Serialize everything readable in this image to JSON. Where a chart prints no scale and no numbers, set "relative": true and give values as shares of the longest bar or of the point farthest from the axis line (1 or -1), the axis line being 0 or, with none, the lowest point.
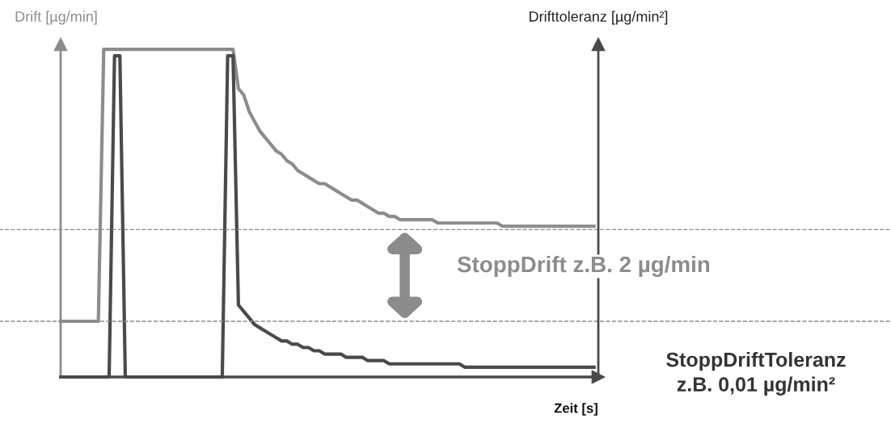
{
  "chart_data": {
    "type": "line",
    "relative": true,
    "xlabel": "Zeit [s]",
    "ylabel": "Drift [µg/min]",
    "y2label": "Drifttoleranz [µg/min²]",
    "annotations": [
      "StoppDrift z.B. 2 µg/min",
      "StoppDriftToleranz\nz.B. 0,01 µg/min²"
    ],
    "categories": [
      null,
      null,
      null,
      null,
      null,
      null,
      null,
      null,
      null,
      null,
      null,
      null,
      null,
      null,
      null,
      null,
      null,
      null,
      null,
      null,
      null,
      null,
      null,
      null,
      null,
      null,
      null,
      null,
      null,
      null,
      null,
      null,
      null,
      null,
      null,
      null,
      null,
      null,
      null,
      null,
      null,
      null,
      null,
      null,
      null,
      null,
      null,
      null,
      null,
      null,
      null,
      null,
      null,
      null,
      null,
      null,
      null,
      null,
      null,
      null,
      null,
      null,
      null,
      null,
      null,
      null,
      null,
      null,
      null,
      null,
      null,
      null,
      null,
      null,
      null,
      null,
      null,
      null,
      null,
      null,
      null,
      null,
      null,
      null,
      null,
      null,
      null,
      null,
      null,
      null,
      null,
      null,
      null,
      null,
      null,
      null,
      null,
      null,
      null,
      null
    ],
    "series": [
      {
        "color": "#8c8c8c",
        "values": [
          0.17,
          0.17,
          0.17,
          0.17,
          0.17,
          0.17,
          0.17,
          0.17,
          1.0,
          1.0,
          1.0,
          1.0,
          1.0,
          1.0,
          1.0,
          1.0,
          1.0,
          1.0,
          1.0,
          1.0,
          1.0,
          1.0,
          1.0,
          1.0,
          1.0,
          1.0,
          1.0,
          1.0,
          1.0,
          1.0,
          1.0,
          1.0,
          1.0,
          0.88,
          0.86,
          0.81,
          0.78,
          0.75,
          0.73,
          0.71,
          0.69,
          0.68,
          0.66,
          0.65,
          0.63,
          0.62,
          0.61,
          0.6,
          0.59,
          0.59,
          0.58,
          0.57,
          0.56,
          0.55,
          0.54,
          0.54,
          0.53,
          0.52,
          0.51,
          0.5,
          0.5,
          0.49,
          0.49,
          0.48,
          0.48,
          0.48,
          0.48,
          0.48,
          0.48,
          0.48,
          0.47,
          0.47,
          0.47,
          0.47,
          0.47,
          0.47,
          0.47,
          0.47,
          0.47,
          0.47,
          0.47,
          0.47,
          0.46,
          0.46,
          0.46,
          0.46,
          0.46,
          0.46,
          0.46,
          0.46,
          0.46,
          0.46,
          0.46,
          0.46,
          0.46,
          0.46,
          0.46,
          0.46,
          0.46,
          0.46
        ]
      },
      {
        "color": "#4a4a4a",
        "values": [
          0,
          0,
          0,
          0,
          0,
          0,
          0,
          0,
          0,
          0,
          0.98,
          0.98,
          0,
          0,
          0,
          0,
          0,
          0,
          0,
          0,
          0,
          0,
          0,
          0,
          0,
          0,
          0,
          0,
          0,
          0,
          0,
          0.98,
          0.98,
          0.22,
          0.2,
          0.18,
          0.16,
          0.15,
          0.14,
          0.13,
          0.12,
          0.11,
          0.11,
          0.1,
          0.1,
          0.09,
          0.09,
          0.08,
          0.08,
          0.07,
          0.07,
          0.07,
          0.07,
          0.06,
          0.06,
          0.06,
          0.06,
          0.05,
          0.05,
          0.05,
          0.05,
          0.04,
          0.04,
          0.04,
          0.04,
          0.04,
          0.04,
          0.04,
          0.04,
          0.04,
          0.04,
          0.04,
          0.04,
          0.04,
          0.04,
          0.03,
          0.03,
          0.03,
          0.03,
          0.03,
          0.03,
          0.03,
          0.03,
          0.03,
          0.03,
          0.03,
          0.03,
          0.03,
          0.03,
          0.03,
          0.03,
          0.03,
          0.03,
          0.03,
          0.03,
          0.03,
          0.03,
          0.03,
          0.03,
          0.03
        ]
      }
    ],
    "ref_lines": [
      {
        "axis": "y",
        "value": 0.45,
        "color": "#8c8c8c",
        "line_style": "dashed"
      },
      {
        "axis": "y",
        "value": 0.17,
        "color": "#8c8c8c",
        "line_style": "dashed"
      }
    ],
    "grid": false,
    "legend": false,
    "marker": "none",
    "line_style": "solid",
    "tick_labels": false
  }
}
